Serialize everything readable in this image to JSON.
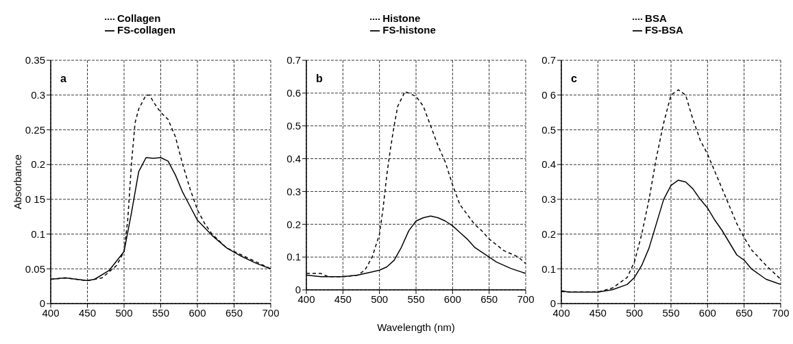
{
  "chart_data": [
    {
      "type": "line",
      "ylabel": "Absorbance",
      "annotations": [
        "a"
      ],
      "legend": "top",
      "grid": true,
      "xlim": [
        400,
        700
      ],
      "xticks": [
        400,
        450,
        500,
        550,
        600,
        650,
        700
      ],
      "ylim": [
        0,
        0.35
      ],
      "yticks": [
        0,
        0.05,
        0.1,
        {
          "value": 0.15,
          "label": "0 15"
        },
        0.2,
        0.25,
        0.3,
        0.35
      ],
      "series": [
        {
          "name": "Collagen",
          "color": "#000000",
          "line_style": "dashed",
          "x": [
            400,
            420,
            450,
            470,
            490,
            500,
            505,
            510,
            515,
            520,
            530,
            535,
            540,
            550,
            560,
            570,
            580,
            590,
            600,
            610,
            620,
            640,
            660,
            680,
            700
          ],
          "values": [
            0.035,
            0.037,
            0.033,
            0.037,
            0.055,
            0.075,
            0.12,
            0.2,
            0.26,
            0.28,
            0.3,
            0.3,
            0.29,
            0.275,
            0.265,
            0.24,
            0.2,
            0.165,
            0.135,
            0.115,
            0.1,
            0.08,
            0.07,
            0.06,
            0.05
          ]
        },
        {
          "name": "FS-collagen",
          "color": "#000000",
          "line_style": "solid",
          "x": [
            400,
            420,
            450,
            460,
            480,
            500,
            510,
            520,
            530,
            540,
            550,
            560,
            570,
            580,
            590,
            600,
            620,
            640,
            660,
            680,
            700
          ],
          "values": [
            0.035,
            0.037,
            0.033,
            0.035,
            0.048,
            0.075,
            0.13,
            0.19,
            0.21,
            0.209,
            0.21,
            0.205,
            0.185,
            0.16,
            0.14,
            0.12,
            0.098,
            0.08,
            0.068,
            0.058,
            0.05
          ]
        }
      ]
    },
    {
      "type": "line",
      "xlabel": "Wavelength (nm)",
      "annotations": [
        "b"
      ],
      "legend": "top",
      "grid": true,
      "xlim": [
        400,
        700
      ],
      "xticks": [
        400,
        450,
        500,
        550,
        600,
        650,
        700
      ],
      "ylim": [
        0,
        0.7
      ],
      "yticks": [
        0,
        0.1,
        0.2,
        0.3,
        0.4,
        0.5,
        0.6,
        0.7
      ],
      "series": [
        {
          "name": "Histone",
          "color": "#000000",
          "line_style": "dashed",
          "x": [
            400,
            420,
            430,
            450,
            470,
            480,
            490,
            500,
            505,
            510,
            515,
            520,
            525,
            535,
            550,
            560,
            570,
            580,
            590,
            600,
            610,
            620,
            630,
            640,
            650,
            670,
            690,
            700
          ],
          "values": [
            0.05,
            0.05,
            0.04,
            0.04,
            0.045,
            0.06,
            0.1,
            0.17,
            0.25,
            0.35,
            0.43,
            0.5,
            0.56,
            0.605,
            0.59,
            0.56,
            0.5,
            0.44,
            0.39,
            0.32,
            0.26,
            0.23,
            0.2,
            0.18,
            0.155,
            0.12,
            0.1,
            0.08
          ]
        },
        {
          "name": "FS-histone",
          "color": "#000000",
          "line_style": "solid",
          "x": [
            400,
            420,
            450,
            470,
            490,
            500,
            510,
            520,
            530,
            540,
            550,
            560,
            570,
            580,
            590,
            600,
            610,
            620,
            630,
            650,
            660,
            680,
            700
          ],
          "values": [
            0.045,
            0.04,
            0.04,
            0.045,
            0.055,
            0.06,
            0.07,
            0.09,
            0.13,
            0.18,
            0.21,
            0.22,
            0.225,
            0.22,
            0.21,
            0.195,
            0.175,
            0.155,
            0.13,
            0.1,
            0.085,
            0.065,
            0.05
          ]
        }
      ]
    },
    {
      "type": "line",
      "annotations": [
        "c"
      ],
      "legend": "top",
      "grid": true,
      "xlim": [
        400,
        700
      ],
      "xticks": [
        400,
        450,
        500,
        550,
        600,
        650,
        700
      ],
      "ylim": [
        0,
        0.7
      ],
      "yticks": [
        0,
        0.1,
        0.2,
        0.3,
        0.4,
        0.5,
        {
          "value": 0.6,
          "label": "0 6"
        },
        0.7
      ],
      "series": [
        {
          "name": "BSA",
          "color": "#000000",
          "line_style": "dashed",
          "x": [
            400,
            410,
            450,
            470,
            490,
            500,
            510,
            520,
            530,
            540,
            550,
            560,
            570,
            580,
            590,
            600,
            610,
            620,
            630,
            640,
            650,
            660,
            680,
            700
          ],
          "values": [
            0.035,
            0.033,
            0.033,
            0.045,
            0.075,
            0.12,
            0.2,
            0.3,
            0.42,
            0.52,
            0.6,
            0.615,
            0.6,
            0.53,
            0.47,
            0.43,
            0.38,
            0.33,
            0.28,
            0.23,
            0.19,
            0.155,
            0.11,
            0.07
          ]
        },
        {
          "name": "FS-BSA",
          "color": "#000000",
          "line_style": "solid",
          "x": [
            400,
            410,
            450,
            470,
            490,
            500,
            510,
            520,
            530,
            540,
            550,
            560,
            570,
            580,
            590,
            600,
            610,
            620,
            630,
            640,
            650,
            660,
            680,
            700
          ],
          "values": [
            0.037,
            0.033,
            0.033,
            0.04,
            0.055,
            0.075,
            0.11,
            0.16,
            0.23,
            0.3,
            0.34,
            0.355,
            0.35,
            0.33,
            0.3,
            0.275,
            0.24,
            0.21,
            0.175,
            0.14,
            0.125,
            0.1,
            0.07,
            0.055
          ]
        }
      ]
    }
  ]
}
